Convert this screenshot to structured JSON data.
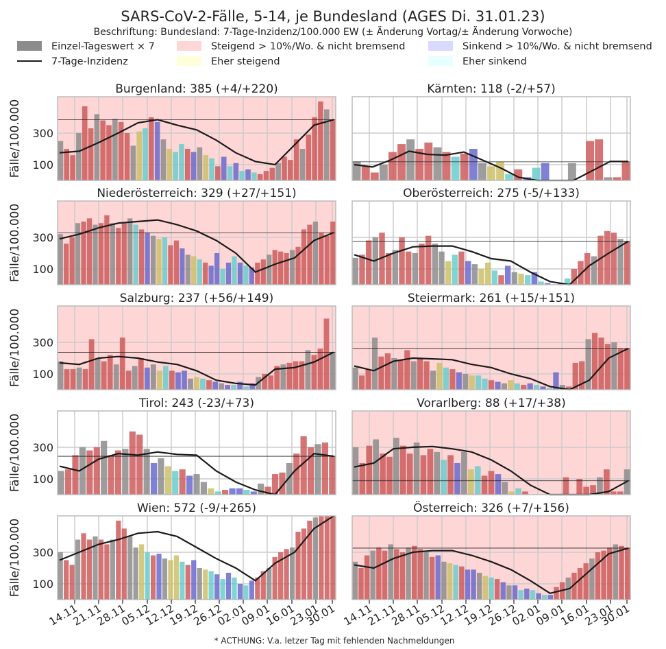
{
  "title": "SARS-CoV-2-Fälle, 5-14, je Bundesland (AGES Di. 31.01.23)",
  "subtitle": "Beschriftung: Bundesland: 7-Tage-Inzidenz/100.000 EW (± Änderung Vortag/± Änderung Vorwoche)",
  "footnote": "* ACTHUNG: V.a. letzer Tag mit fehlenden Nachmeldungen",
  "colors": {
    "grey_bar": "#8c8c8c",
    "line": "#1a1a1a",
    "rising_bg": "#ffd6d6",
    "falling_bg": "#d6d6ff",
    "rising_bar": "#cd5c5c",
    "falling_bar": "#6a6acd",
    "slightly_rising_bar": "#cdbf6a",
    "slightly_falling_bar": "#6acdcd",
    "grid": "#cccccc"
  },
  "legend": {
    "placement": "top",
    "items": [
      {
        "label": "Einzel-Tageswert × 7",
        "type": "bar",
        "color": "#8c8c8c"
      },
      {
        "label": "7-Tage-Inzidenz",
        "type": "line",
        "color": "#1a1a1a"
      },
      {
        "label": "Steigend > 10%/Wo. & nicht bremsend",
        "type": "patch",
        "color": "#ffd6d6"
      },
      {
        "label": "Eher steigend",
        "type": "patch",
        "color": "#ffffd9"
      },
      {
        "label": "Sinkend > 10%/Wo. & nicht bremsend",
        "type": "patch",
        "color": "#d9d9ff"
      },
      {
        "label": "Eher sinkend",
        "type": "patch",
        "color": "#e6ffff"
      }
    ]
  },
  "axes": {
    "ylabel": "Fälle/100.000",
    "yticks": [
      100,
      300
    ],
    "ylim": [
      0,
      530
    ],
    "xticks": [
      "14.11",
      "21.11",
      "28.11",
      "05.12",
      "12.12",
      "19.12",
      "26.12",
      "02.01",
      "09.01",
      "16.01",
      "23.01",
      "30.01"
    ]
  },
  "chart_data": [
    {
      "type": "bar",
      "title": "Burgenland: 385 (+4/+220)",
      "background": "rising",
      "reference": 385,
      "line": [
        175,
        185,
        240,
        300,
        365,
        385,
        350,
        320,
        255,
        175,
        120,
        100,
        225,
        350,
        385
      ],
      "bars": [
        [
          250,
          200,
          160,
          300,
          470,
          330
        ],
        [
          420,
          380,
          350,
          390,
          370,
          300,
          220
        ],
        [
          310,
          330,
          400,
          370,
          260,
          200,
          180
        ],
        [
          230,
          200,
          180,
          210,
          160,
          140,
          90
        ],
        [
          150,
          90,
          110,
          60,
          70,
          50
        ],
        [
          40,
          60,
          80,
          110,
          150,
          130
        ],
        [
          260,
          200,
          290,
          400,
          500,
          450,
          385
        ]
      ]
    },
    {
      "type": "bar",
      "title": "Kärnten: 118 (-2/+57)",
      "background": "none",
      "reference": 118,
      "line": [
        100,
        85,
        130,
        185,
        165,
        160,
        180,
        130,
        80,
        20,
        0,
        0,
        0,
        60,
        120,
        120
      ],
      "bars": [
        [
          120,
          90,
          50,
          100,
          180,
          230
        ],
        [
          260,
          200,
          240,
          210,
          180
        ],
        [
          150,
          170,
          200,
          110,
          90
        ],
        [
          120,
          40,
          70,
          20
        ],
        [
          80,
          110
        ],
        [
          0,
          0,
          110,
          0
        ],
        [
          250,
          260,
          20,
          20,
          118
        ]
      ]
    },
    {
      "type": "bar",
      "title": "Niederösterreich: 329 (+27/+151)",
      "background": "rising",
      "reference": 329,
      "line": [
        290,
        320,
        360,
        390,
        400,
        410,
        380,
        340,
        280,
        200,
        80,
        130,
        170,
        280,
        330
      ],
      "bars": [
        [
          320,
          260,
          300,
          390,
          400,
          420
        ],
        [
          380,
          390,
          440,
          390,
          360,
          390,
          420
        ],
        [
          380,
          350,
          330,
          310,
          290,
          300,
          250
        ],
        [
          280,
          230,
          190,
          180,
          160,
          140,
          120
        ],
        [
          200,
          100,
          140,
          180,
          140,
          120,
          110
        ],
        [
          140,
          160,
          190,
          220,
          210,
          200,
          220
        ],
        [
          240,
          350,
          380,
          400,
          330,
          310,
          400
        ]
      ]
    },
    {
      "type": "bar",
      "title": "Oberösterreich: 275 (-5/+133)",
      "background": "none",
      "reference": 275,
      "line": [
        190,
        150,
        200,
        240,
        245,
        245,
        210,
        165,
        150,
        80,
        20,
        0,
        120,
        200,
        275
      ],
      "bars": [
        [
          170,
          190,
          280,
          300,
          330,
          200
        ],
        [
          220,
          300,
          210,
          200,
          260,
          310,
          260
        ],
        [
          210,
          150,
          190,
          210,
          150,
          130,
          100
        ],
        [
          140,
          90,
          60,
          120,
          80,
          70,
          60
        ],
        [
          80,
          20,
          10,
          0,
          10,
          40
        ],
        [
          100,
          150,
          200,
          180,
          310,
          340,
          330
        ],
        [
          290,
          275
        ]
      ]
    },
    {
      "type": "bar",
      "title": "Salzburg: 237 (+56/+149)",
      "background": "rising",
      "reference": 237,
      "line": [
        170,
        160,
        200,
        210,
        200,
        175,
        160,
        120,
        60,
        40,
        30,
        130,
        140,
        175,
        237
      ],
      "bars": [
        [
          180,
          130,
          130,
          140,
          130,
          320
        ],
        [
          200,
          180,
          220,
          160,
          330,
          120,
          150
        ],
        [
          200,
          140,
          160,
          120,
          150,
          120,
          110
        ],
        [
          120,
          70,
          80,
          70,
          60,
          50,
          40
        ],
        [
          30,
          30,
          50,
          20,
          40
        ],
        [
          80,
          100,
          90,
          150,
          160,
          170
        ],
        [
          180,
          180,
          250,
          220,
          260,
          450,
          237
        ]
      ]
    },
    {
      "type": "bar",
      "title": "Steiermark: 261 (+15/+151)",
      "background": "rising",
      "reference": 261,
      "line": [
        150,
        120,
        180,
        200,
        195,
        190,
        160,
        140,
        100,
        70,
        20,
        0,
        60,
        200,
        261
      ],
      "bars": [
        [
          140,
          90,
          130,
          330,
          210,
          230
        ],
        [
          200,
          190,
          250,
          180,
          200,
          180,
          120
        ],
        [
          170,
          140,
          130,
          110,
          100,
          90,
          90
        ],
        [
          70,
          60,
          50,
          40,
          60,
          40,
          30
        ],
        [
          40,
          30,
          20,
          10,
          110
        ],
        [
          30,
          20,
          170,
          180,
          320,
          360
        ],
        [
          330,
          290,
          300,
          260,
          261
        ]
      ]
    },
    {
      "type": "bar",
      "title": "Tirol: 243 (-23/+73)",
      "background": "none",
      "reference": 243,
      "line": [
        180,
        150,
        225,
        260,
        250,
        270,
        255,
        250,
        150,
        80,
        30,
        0,
        150,
        260,
        243
      ],
      "bars": [
        [
          150,
          160,
          250,
          300,
          280,
          300
        ],
        [
          340,
          250,
          280,
          290,
          400,
          380,
          290
        ],
        [
          200,
          230,
          180,
          150,
          160,
          120,
          130
        ],
        [
          80,
          40,
          20,
          30,
          40
        ],
        [
          40,
          30,
          20
        ],
        [
          70,
          50,
          130,
          140,
          200,
          260
        ],
        [
          370,
          300,
          320,
          330,
          243
        ]
      ]
    },
    {
      "type": "bar",
      "title": "Vorarlberg: 88 (+17/+38)",
      "background": "rising",
      "reference": 88,
      "line": [
        175,
        200,
        290,
        300,
        305,
        290,
        270,
        220,
        150,
        60,
        0,
        0,
        0,
        20,
        88
      ],
      "bars": [
        [
          300,
          200,
          310,
          350,
          260,
          240
        ],
        [
          360,
          310,
          260,
          330,
          250,
          290,
          270
        ],
        [
          220,
          250,
          200,
          270,
          160,
          180,
          120
        ],
        [
          150,
          130,
          80,
          20,
          40,
          20
        ],
        [
          0,
          0,
          0,
          0
        ],
        [
          0,
          110,
          0,
          100,
          50,
          60
        ],
        [
          110,
          160,
          20,
          20,
          160
        ]
      ]
    },
    {
      "type": "bar",
      "title": "Wien: 572 (-9/+265)",
      "background": "none",
      "reference": 572,
      "line": [
        250,
        300,
        350,
        380,
        420,
        430,
        400,
        330,
        260,
        200,
        120,
        230,
        300,
        450,
        572
      ],
      "bars": [
        [
          300,
          250,
          220,
          380,
          420,
          380
        ],
        [
          400,
          380,
          350,
          380,
          500,
          450,
          400
        ],
        [
          330,
          350,
          300,
          280,
          290,
          260,
          250
        ],
        [
          280,
          240,
          220,
          250,
          200,
          190,
          180
        ],
        [
          160,
          130,
          170,
          140,
          100,
          90,
          120
        ],
        [
          140,
          180,
          200,
          270,
          300,
          320,
          330
        ],
        [
          430,
          450,
          500,
          520,
          580,
          560,
          572
        ]
      ]
    },
    {
      "type": "bar",
      "title": "Österreich: 326 (+7/+156)",
      "background": "rising",
      "reference": 326,
      "line": [
        220,
        200,
        260,
        300,
        310,
        310,
        280,
        240,
        190,
        120,
        40,
        70,
        180,
        290,
        326
      ],
      "bars": [
        [
          240,
          200,
          280,
          310,
          330,
          310
        ],
        [
          350,
          320,
          300,
          330,
          340,
          320,
          300
        ],
        [
          270,
          280,
          240,
          230,
          220,
          210,
          190
        ],
        [
          190,
          170,
          150,
          140,
          130,
          110,
          90
        ],
        [
          90,
          60,
          70,
          60,
          40,
          30,
          30
        ],
        [
          80,
          110,
          140,
          170,
          200,
          230,
          260
        ],
        [
          300,
          310,
          330,
          350,
          340,
          326
        ]
      ]
    }
  ]
}
